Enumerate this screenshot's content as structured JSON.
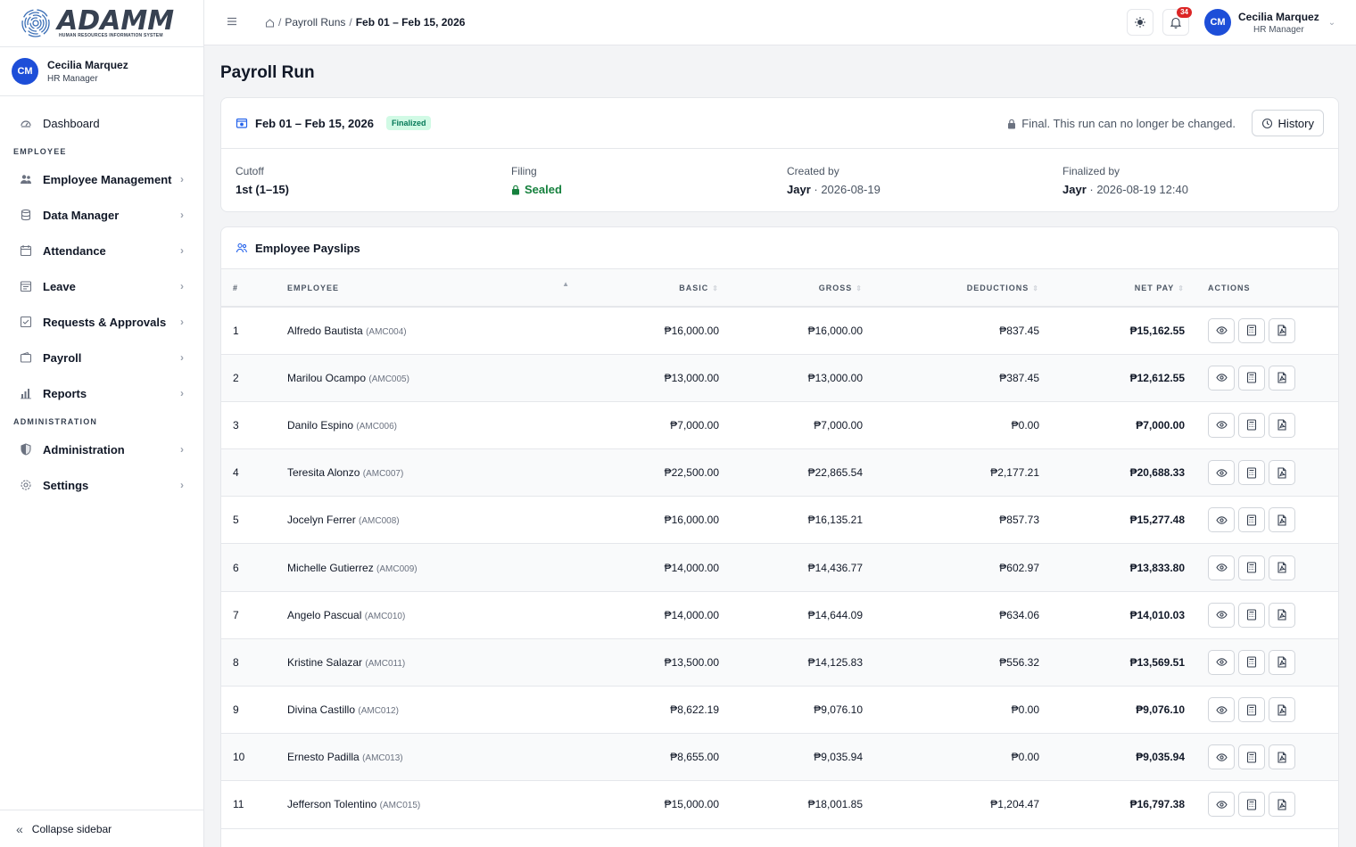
{
  "app": {
    "logo_text": "ADAMM",
    "logo_subtitle": "HUMAN RESOURCES INFORMATION SYSTEM"
  },
  "user": {
    "initials": "CM",
    "name": "Cecilia Marquez",
    "role": "HR Manager"
  },
  "sidebar": {
    "dashboard": "Dashboard",
    "section_employee": "EMPLOYEE",
    "items": [
      {
        "label": "Employee Management",
        "icon": "users-icon"
      },
      {
        "label": "Data Manager",
        "icon": "database-icon"
      },
      {
        "label": "Attendance",
        "icon": "calendar-icon"
      },
      {
        "label": "Leave",
        "icon": "leave-icon"
      },
      {
        "label": "Requests & Approvals",
        "icon": "check-square-icon"
      },
      {
        "label": "Payroll",
        "icon": "wallet-icon"
      },
      {
        "label": "Reports",
        "icon": "bar-chart-icon"
      }
    ],
    "section_admin": "ADMINISTRATION",
    "admin_items": [
      {
        "label": "Administration",
        "icon": "shield-icon"
      },
      {
        "label": "Settings",
        "icon": "gear-icon"
      }
    ],
    "collapse_label": "Collapse sidebar"
  },
  "topbar": {
    "breadcrumb": [
      "Payroll Runs",
      "Feb 01 – Feb 15, 2026"
    ],
    "notification_count": "34"
  },
  "page": {
    "title": "Payroll Run"
  },
  "run": {
    "period": "Feb 01 – Feb 15, 2026",
    "status": "Finalized",
    "lock_note": "Final. This run can no longer be changed.",
    "history_label": "History",
    "cutoff_label": "Cutoff",
    "cutoff_value": "1st (1–15)",
    "filing_label": "Filing",
    "filing_value": "Sealed",
    "created_label": "Created by",
    "created_by": "Jayr",
    "created_date": "· 2026-08-19",
    "finalized_label": "Finalized by",
    "finalized_by": "Jayr",
    "finalized_date": "· 2026-08-19 12:40"
  },
  "payslips": {
    "title": "Employee Payslips",
    "columns": [
      "#",
      "EMPLOYEE",
      "BASIC",
      "GROSS",
      "DEDUCTIONS",
      "NET PAY",
      "ACTIONS"
    ],
    "rows": [
      {
        "n": "1",
        "name": "Alfredo Bautista",
        "code": "(AMC004)",
        "basic": "₱16,000.00",
        "gross": "₱16,000.00",
        "ded": "₱837.45",
        "net": "₱15,162.55"
      },
      {
        "n": "2",
        "name": "Marilou Ocampo",
        "code": "(AMC005)",
        "basic": "₱13,000.00",
        "gross": "₱13,000.00",
        "ded": "₱387.45",
        "net": "₱12,612.55"
      },
      {
        "n": "3",
        "name": "Danilo Espino",
        "code": "(AMC006)",
        "basic": "₱7,000.00",
        "gross": "₱7,000.00",
        "ded": "₱0.00",
        "net": "₱7,000.00"
      },
      {
        "n": "4",
        "name": "Teresita Alonzo",
        "code": "(AMC007)",
        "basic": "₱22,500.00",
        "gross": "₱22,865.54",
        "ded": "₱2,177.21",
        "net": "₱20,688.33"
      },
      {
        "n": "5",
        "name": "Jocelyn Ferrer",
        "code": "(AMC008)",
        "basic": "₱16,000.00",
        "gross": "₱16,135.21",
        "ded": "₱857.73",
        "net": "₱15,277.48"
      },
      {
        "n": "6",
        "name": "Michelle Gutierrez",
        "code": "(AMC009)",
        "basic": "₱14,000.00",
        "gross": "₱14,436.77",
        "ded": "₱602.97",
        "net": "₱13,833.80"
      },
      {
        "n": "7",
        "name": "Angelo Pascual",
        "code": "(AMC010)",
        "basic": "₱14,000.00",
        "gross": "₱14,644.09",
        "ded": "₱634.06",
        "net": "₱14,010.03"
      },
      {
        "n": "8",
        "name": "Kristine Salazar",
        "code": "(AMC011)",
        "basic": "₱13,500.00",
        "gross": "₱14,125.83",
        "ded": "₱556.32",
        "net": "₱13,569.51"
      },
      {
        "n": "9",
        "name": "Divina Castillo",
        "code": "(AMC012)",
        "basic": "₱8,622.19",
        "gross": "₱9,076.10",
        "ded": "₱0.00",
        "net": "₱9,076.10"
      },
      {
        "n": "10",
        "name": "Ernesto Padilla",
        "code": "(AMC013)",
        "basic": "₱8,655.00",
        "gross": "₱9,035.94",
        "ded": "₱0.00",
        "net": "₱9,035.94"
      },
      {
        "n": "11",
        "name": "Jefferson Tolentino",
        "code": "(AMC015)",
        "basic": "₱15,000.00",
        "gross": "₱18,001.85",
        "ded": "₱1,204.47",
        "net": "₱16,797.38"
      }
    ]
  },
  "colors": {
    "primary": "#1d4ed8",
    "success": "#15803d",
    "badge": "#dc2626"
  }
}
